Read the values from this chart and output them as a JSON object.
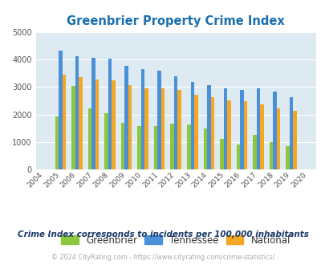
{
  "title": "Greenbrier Property Crime Index",
  "subtitle": "Crime Index corresponds to incidents per 100,000 inhabitants",
  "footer": "© 2024 CityRating.com - https://www.cityrating.com/crime-statistics/",
  "all_years": [
    2004,
    2005,
    2006,
    2007,
    2008,
    2009,
    2010,
    2011,
    2012,
    2013,
    2014,
    2015,
    2016,
    2017,
    2018,
    2019,
    2020
  ],
  "data_years": [
    2005,
    2006,
    2007,
    2008,
    2009,
    2010,
    2011,
    2012,
    2013,
    2014,
    2015,
    2016,
    2017,
    2018,
    2019
  ],
  "greenbrier": [
    1920,
    3040,
    2220,
    2050,
    1700,
    1590,
    1570,
    1660,
    1650,
    1480,
    1110,
    900,
    1260,
    1010,
    850
  ],
  "tennessee": [
    4310,
    4100,
    4070,
    4040,
    3770,
    3660,
    3600,
    3380,
    3190,
    3060,
    2950,
    2880,
    2940,
    2840,
    2630
  ],
  "national": [
    3450,
    3350,
    3260,
    3230,
    3060,
    2960,
    2940,
    2890,
    2730,
    2620,
    2510,
    2470,
    2380,
    2220,
    2140
  ],
  "bar_width": 0.22,
  "ylim": [
    0,
    5000
  ],
  "yticks": [
    0,
    1000,
    2000,
    3000,
    4000,
    5000
  ],
  "colors": {
    "greenbrier": "#8dc63f",
    "tennessee": "#4a90d9",
    "national": "#f5a623"
  },
  "bg_color": "#deeaf1",
  "title_color": "#1a6fad",
  "subtitle_color": "#1a3a6a",
  "footer_color": "#aaaaaa",
  "grid_color": "#ffffff",
  "legend_labels": [
    "Greenbrier",
    "Tennessee",
    "National"
  ]
}
